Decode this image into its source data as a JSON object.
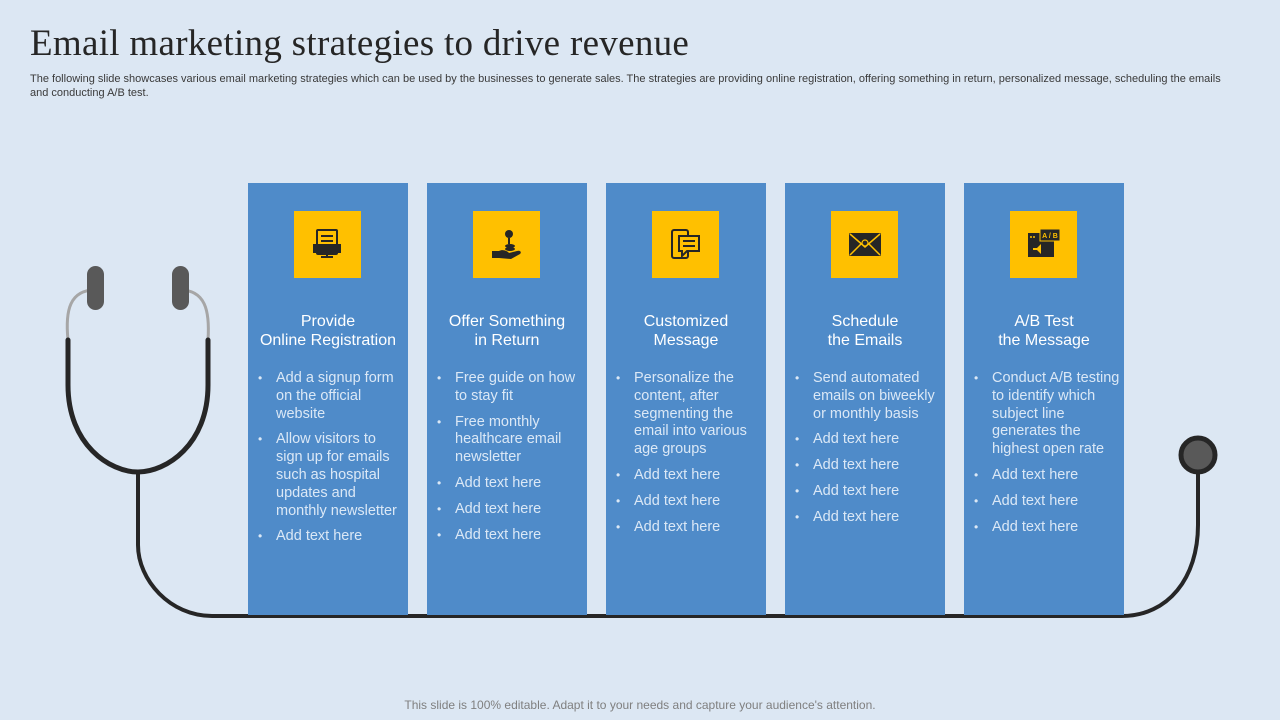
{
  "title": "Email marketing strategies to drive revenue",
  "subtitle": "The following slide showcases various email marketing strategies which can be used by the businesses to generate sales. The strategies are providing online registration, offering something in return, personalized message, scheduling the emails and conducting A/B test.",
  "colors": {
    "background": "#dce7f3",
    "panel": "#4f8bc9",
    "icon_box": "#ffc000",
    "stethoscope": "#262626",
    "earpiece": "#5a5a5a",
    "tube_top": "#a6a6a6"
  },
  "panels": [
    {
      "icon": "registration-form-icon",
      "title_lines": [
        "Provide",
        "Online Registration"
      ],
      "bullets": [
        "Add a signup form on the official website",
        "Allow visitors to sign up for emails such as hospital updates and monthly newsletter",
        "Add text here"
      ]
    },
    {
      "icon": "hand-giving-coins-icon",
      "title_lines": [
        "Offer Something",
        "in Return"
      ],
      "bullets": [
        "Free guide on how to stay fit",
        "Free monthly healthcare email newsletter",
        "Add text here",
        "Add text here",
        "Add text here"
      ]
    },
    {
      "icon": "chat-message-icon",
      "title_lines": [
        "Customized",
        "Message"
      ],
      "bullets": [
        "Personalize the content, after segmenting the email into various age groups",
        "Add text here",
        "Add text here",
        "Add text here"
      ]
    },
    {
      "icon": "envelope-icon",
      "title_lines": [
        "Schedule",
        "the Emails"
      ],
      "bullets": [
        "Send automated emails on biweekly or monthly basis",
        "Add text here",
        "Add text here",
        "Add text here",
        "Add text here"
      ]
    },
    {
      "icon": "ab-test-icon",
      "icon_text": "A / B",
      "title_lines": [
        "A/B Test",
        "the Message"
      ],
      "bullets": [
        "Conduct A/B testing to identify which subject line generates the highest open rate",
        "Add text here",
        "Add text here",
        "Add text here"
      ]
    }
  ],
  "footer": "This slide is 100% editable. Adapt it to your needs and capture your audience's attention."
}
